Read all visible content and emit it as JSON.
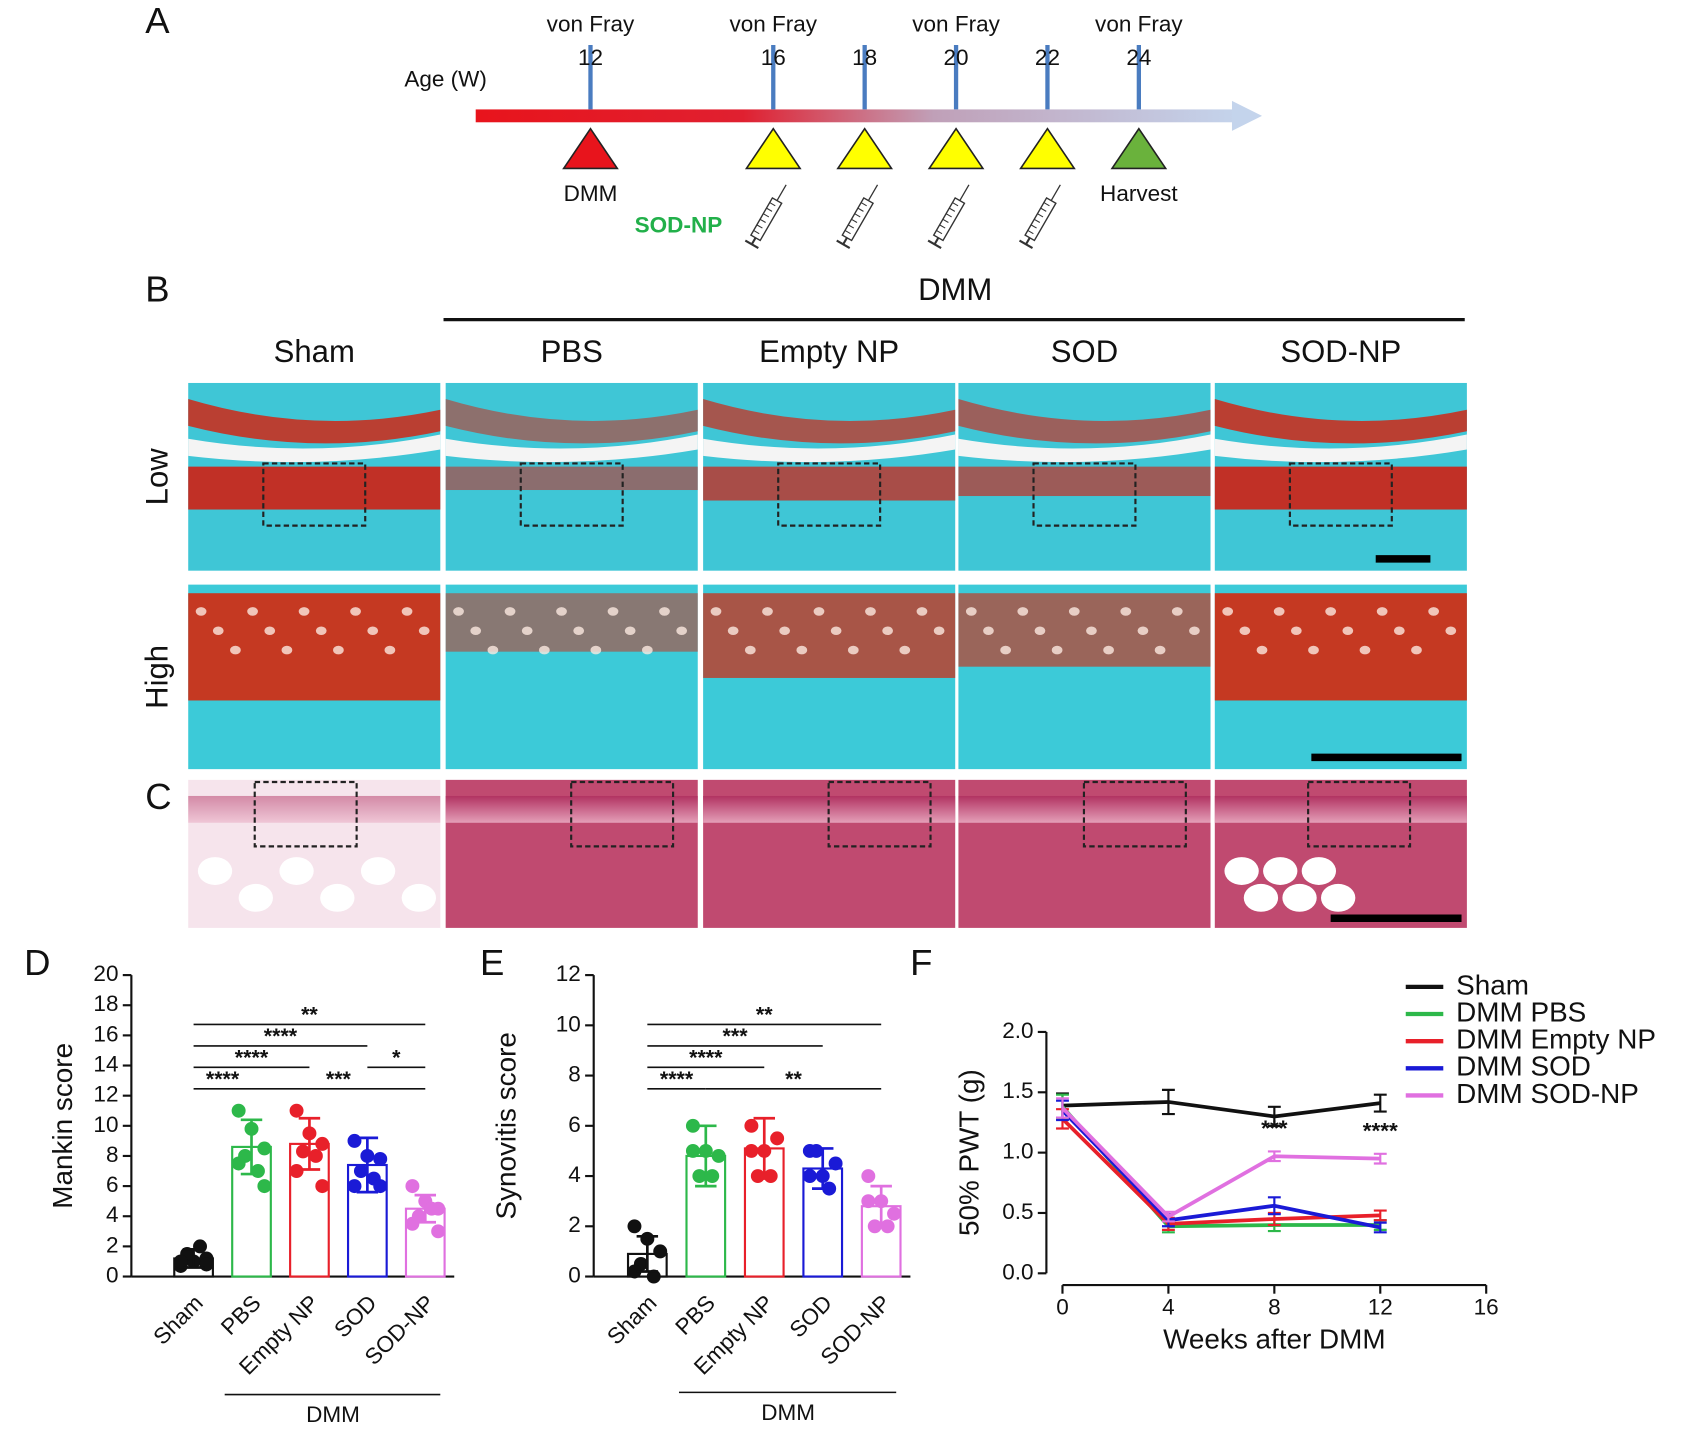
{
  "timeline": {
    "label": "A",
    "axis_label": "Age (W)",
    "injection_label": "SOD-NP",
    "points": [
      {
        "week": 12,
        "test": "von Fray",
        "event": "DMM",
        "color": "#e8141c"
      },
      {
        "week": 16,
        "test": "von Fray",
        "injection": true,
        "color": "#ffff00"
      },
      {
        "week": 18,
        "injection": true,
        "color": "#ffff00"
      },
      {
        "week": 20,
        "test": "von Fray",
        "injection": true,
        "color": "#ffff00"
      },
      {
        "week": 22,
        "injection": true,
        "color": "#ffff00"
      },
      {
        "week": 24,
        "test": "von Fray",
        "event": "Harvest",
        "color": "#6ab23c"
      }
    ]
  },
  "histology": {
    "label_b": "B",
    "label_c": "C",
    "group": "DMM",
    "columns": [
      "Sham",
      "PBS",
      "Empty NP",
      "SOD",
      "SOD-NP"
    ],
    "rows": [
      "Low",
      "High"
    ]
  },
  "chart_data": [
    {
      "type": "bar",
      "label": "D",
      "y_label": "Mankin score",
      "categories": [
        "Sham",
        "PBS",
        "Empty NP",
        "SOD",
        "SOD-NP"
      ],
      "colors": [
        "#111111",
        "#2db84a",
        "#e8202a",
        "#1a1ad6",
        "#e070e0"
      ],
      "values": [
        1.2,
        8.6,
        8.8,
        7.4,
        4.5
      ],
      "errors": [
        0.6,
        1.8,
        1.7,
        1.8,
        0.9
      ],
      "points": [
        [
          0.7,
          1.0,
          1.2,
          1.5,
          2.0,
          1.0,
          0.8
        ],
        [
          11,
          9.8,
          8.5,
          8.0,
          7.0,
          7.5,
          6.0
        ],
        [
          11,
          9.5,
          8.8,
          8.3,
          8.0,
          7.0,
          6.0
        ],
        [
          9.0,
          8.0,
          7.8,
          7.0,
          6.5,
          6.0,
          6.0
        ],
        [
          6.0,
          5.0,
          4.5,
          4.0,
          4.5,
          3.5,
          3.0
        ]
      ],
      "ylim": [
        0,
        20
      ],
      "yticks": [
        0,
        2,
        4,
        6,
        8,
        10,
        12,
        14,
        16,
        18,
        20
      ],
      "group": {
        "label": "DMM",
        "from": 1,
        "to": 4
      },
      "significance": [
        {
          "from": 0,
          "to": 1,
          "label": "****"
        },
        {
          "from": 1,
          "to": 4,
          "label": "***"
        },
        {
          "from": 0,
          "to": 2,
          "label": "****"
        },
        {
          "from": 0,
          "to": 3,
          "label": "****"
        },
        {
          "from": 3,
          "to": 4,
          "label": "*"
        },
        {
          "from": 0,
          "to": 4,
          "label": "**"
        }
      ]
    },
    {
      "type": "bar",
      "label": "E",
      "y_label": "Synovitis score",
      "categories": [
        "Sham",
        "PBS",
        "Empty NP",
        "SOD",
        "SOD-NP"
      ],
      "colors": [
        "#111111",
        "#2db84a",
        "#e8202a",
        "#1a1ad6",
        "#e070e0"
      ],
      "values": [
        0.9,
        4.8,
        5.1,
        4.3,
        2.8
      ],
      "errors": [
        0.7,
        1.2,
        1.2,
        0.8,
        0.8
      ],
      "points": [
        [
          2.0,
          1.5,
          1.0,
          0.5,
          0.0,
          0.2
        ],
        [
          6.0,
          5.0,
          4.8,
          4.0,
          4.0,
          5.0
        ],
        [
          6.0,
          5.0,
          5.5,
          4.0,
          4.0,
          5.0
        ],
        [
          5.0,
          4.0,
          4.5,
          5.0,
          3.5,
          4.0
        ],
        [
          4.0,
          3.0,
          2.5,
          2.0,
          2.0,
          3.0
        ]
      ],
      "ylim": [
        0,
        12
      ],
      "yticks": [
        0,
        2,
        4,
        6,
        8,
        10,
        12
      ],
      "group": {
        "label": "DMM",
        "from": 1,
        "to": 4
      },
      "significance": [
        {
          "from": 0,
          "to": 1,
          "label": "****"
        },
        {
          "from": 1,
          "to": 4,
          "label": "**"
        },
        {
          "from": 0,
          "to": 2,
          "label": "****"
        },
        {
          "from": 0,
          "to": 3,
          "label": "***"
        },
        {
          "from": 0,
          "to": 4,
          "label": "**"
        }
      ]
    },
    {
      "type": "line",
      "label": "F",
      "x_label": "Weeks after DMM",
      "y_label": "50% PWT (g)",
      "x": [
        0,
        4,
        8,
        12
      ],
      "series": [
        {
          "name": "Sham",
          "color": "#111111",
          "values": [
            1.39,
            1.42,
            1.3,
            1.41
          ],
          "errors": [
            0.1,
            0.1,
            0.08,
            0.07
          ]
        },
        {
          "name": "DMM PBS",
          "color": "#2db84a",
          "values": [
            1.38,
            0.39,
            0.4,
            0.4
          ],
          "errors": [
            0.1,
            0.05,
            0.05,
            0.04
          ]
        },
        {
          "name": "DMM Empty NP",
          "color": "#e8202a",
          "values": [
            1.28,
            0.41,
            0.45,
            0.48
          ],
          "errors": [
            0.08,
            0.05,
            0.05,
            0.04
          ]
        },
        {
          "name": "DMM SOD",
          "color": "#1a1ad6",
          "values": [
            1.35,
            0.44,
            0.56,
            0.38
          ],
          "errors": [
            0.08,
            0.05,
            0.07,
            0.04
          ]
        },
        {
          "name": "DMM SOD-NP",
          "color": "#e070e0",
          "values": [
            1.37,
            0.47,
            0.97,
            0.95
          ],
          "errors": [
            0.08,
            0.04,
            0.04,
            0.04
          ]
        }
      ],
      "annotations": [
        {
          "x": 8,
          "series": 4,
          "text": "***"
        },
        {
          "x": 12,
          "series": 4,
          "text": "****"
        }
      ],
      "xlim": [
        0,
        16
      ],
      "xticks": [
        0,
        4,
        8,
        12,
        16
      ],
      "ylim": [
        0,
        2
      ],
      "yticks": [
        {
          "value": 0,
          "label": "0.0"
        },
        {
          "value": 0.5,
          "label": "0.5"
        },
        {
          "value": 1,
          "label": "1.0"
        },
        {
          "value": 1.5,
          "label": "1.5"
        },
        {
          "value": 2,
          "label": "2.0"
        }
      ],
      "legend": "top-right"
    }
  ]
}
